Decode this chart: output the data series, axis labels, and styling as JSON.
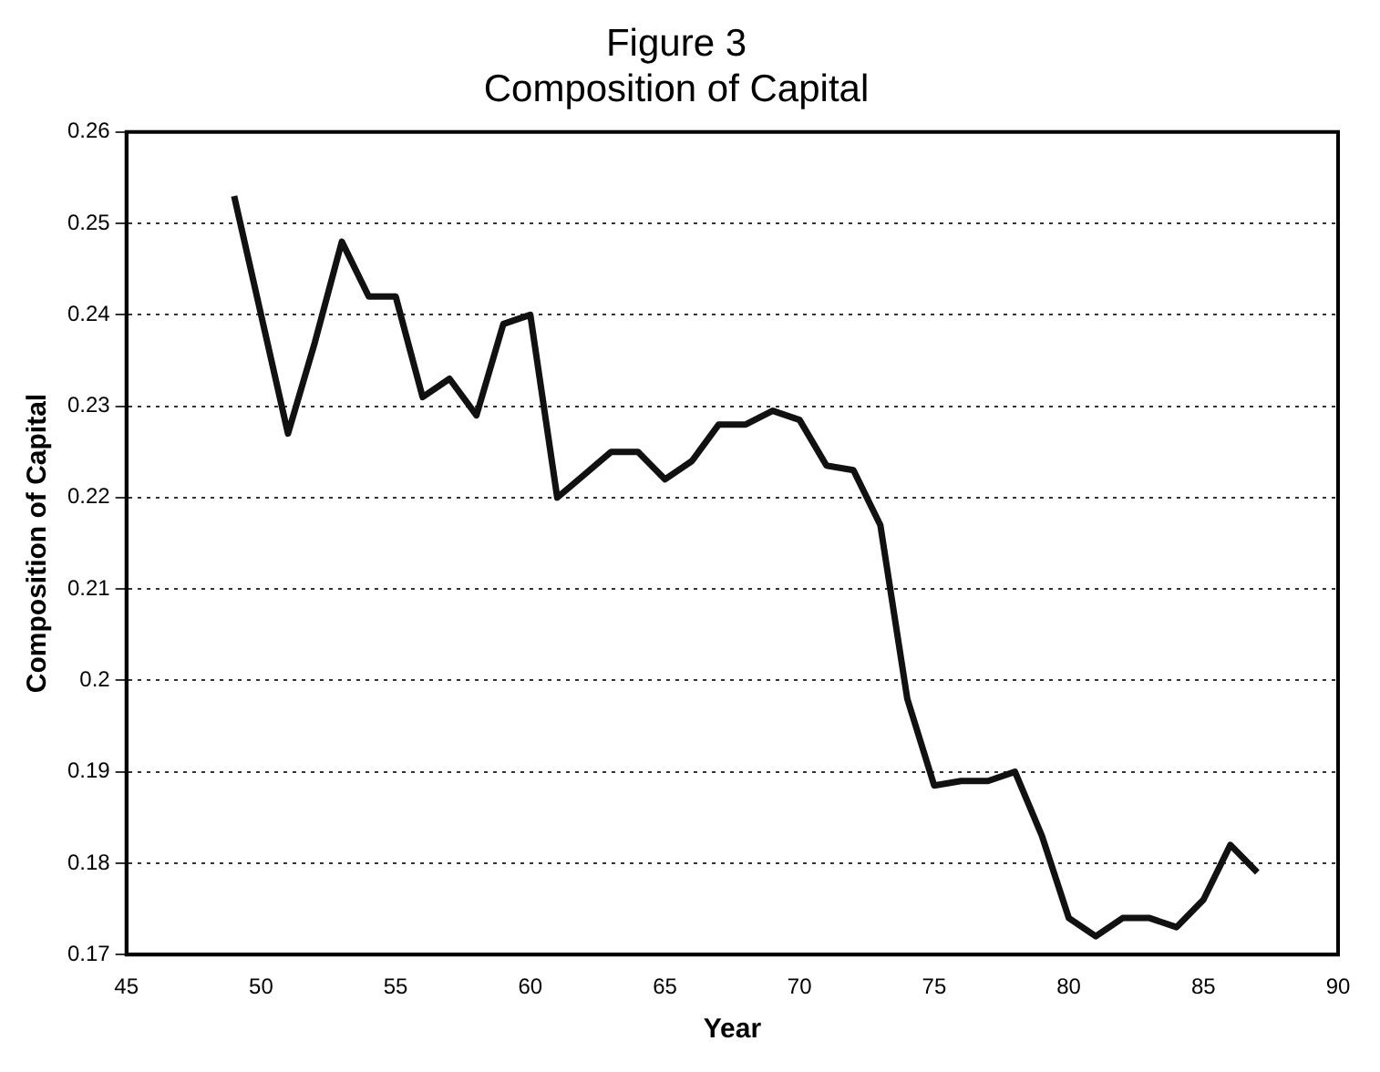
{
  "chart_data": {
    "type": "line",
    "title": "Figure 3",
    "subtitle": "Composition of Capital",
    "xlabel": "Year",
    "ylabel": "Composition of Capital",
    "x": [
      49,
      50,
      51,
      52,
      53,
      54,
      55,
      56,
      57,
      58,
      59,
      60,
      61,
      62,
      63,
      64,
      65,
      66,
      67,
      68,
      69,
      70,
      71,
      72,
      73,
      74,
      75,
      76,
      77,
      78,
      79,
      80,
      81,
      82,
      83,
      84,
      85,
      86,
      87
    ],
    "series": [
      {
        "color": "#111111",
        "values": [
          0.253,
          0.24,
          0.227,
          0.237,
          0.248,
          0.242,
          0.242,
          0.231,
          0.233,
          0.229,
          0.239,
          0.24,
          0.22,
          0.2225,
          0.225,
          0.225,
          0.222,
          0.224,
          0.228,
          0.228,
          0.2295,
          0.2285,
          0.2235,
          0.223,
          0.217,
          0.198,
          0.1885,
          0.189,
          0.189,
          0.19,
          0.183,
          0.174,
          0.172,
          0.174,
          0.174,
          0.173,
          0.176,
          0.182,
          0.179
        ]
      }
    ],
    "xlim": [
      45,
      90
    ],
    "xticks": [
      45,
      50,
      55,
      60,
      65,
      70,
      75,
      80,
      85,
      90
    ],
    "ylim": [
      0.17,
      0.26
    ],
    "yticks": [
      0.17,
      0.18,
      0.19,
      0.2,
      0.21,
      0.22,
      0.23,
      0.24,
      0.25,
      0.26
    ],
    "grid": "y",
    "legend": false,
    "marker": "none",
    "line_style": "solid"
  }
}
